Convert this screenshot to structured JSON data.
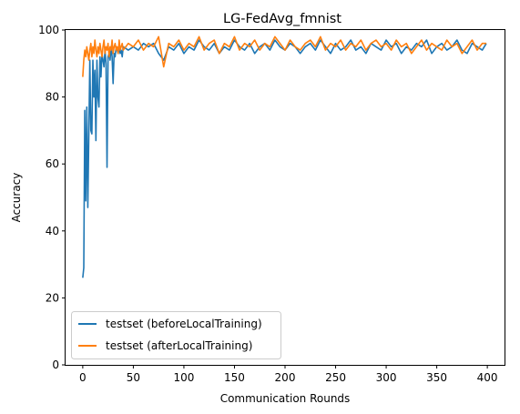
{
  "chart_data": {
    "type": "line",
    "title": "LG-FedAvg_fmnist",
    "xlabel": "Communication Rounds",
    "ylabel": "Accuracy",
    "xlim": [
      -17,
      417
    ],
    "ylim": [
      0,
      100
    ],
    "xticks": [
      0,
      50,
      100,
      150,
      200,
      250,
      300,
      350,
      400
    ],
    "yticks": [
      0,
      20,
      40,
      60,
      80,
      100
    ],
    "grid": false,
    "legend_position": "lower-left",
    "series": [
      {
        "name": "testset (beforeLocalTraining)",
        "color": "#1f77b4",
        "x": [
          0,
          1,
          2,
          3,
          4,
          5,
          6,
          7,
          8,
          9,
          10,
          11,
          12,
          13,
          14,
          15,
          16,
          17,
          18,
          19,
          20,
          21,
          22,
          23,
          24,
          25,
          26,
          27,
          28,
          29,
          30,
          31,
          32,
          33,
          34,
          35,
          36,
          37,
          38,
          39,
          40,
          45,
          50,
          55,
          60,
          65,
          70,
          75,
          80,
          85,
          90,
          95,
          100,
          105,
          110,
          115,
          120,
          125,
          130,
          135,
          140,
          145,
          150,
          155,
          160,
          165,
          170,
          175,
          180,
          185,
          190,
          195,
          200,
          205,
          210,
          215,
          220,
          225,
          230,
          235,
          240,
          245,
          250,
          255,
          260,
          265,
          270,
          275,
          280,
          285,
          290,
          295,
          300,
          305,
          310,
          315,
          320,
          325,
          330,
          335,
          340,
          345,
          350,
          355,
          360,
          365,
          370,
          375,
          380,
          385,
          390,
          395,
          399
        ],
        "y": [
          26,
          29,
          76,
          49,
          77,
          47,
          69,
          91,
          70,
          69,
          91,
          80,
          88,
          67,
          91,
          80,
          77,
          92,
          86,
          93,
          91,
          89,
          94,
          90,
          59,
          92,
          93,
          91,
          95,
          92,
          84,
          93,
          92,
          95,
          94,
          93,
          95,
          93,
          94,
          92,
          95,
          94,
          95,
          94,
          96,
          95,
          96,
          93,
          91,
          95,
          94,
          96,
          93,
          95,
          94,
          97,
          95,
          94,
          96,
          93,
          95,
          94,
          97,
          95,
          94,
          96,
          93,
          95,
          96,
          94,
          97,
          95,
          94,
          96,
          95,
          93,
          95,
          96,
          94,
          97,
          95,
          93,
          96,
          94,
          95,
          97,
          94,
          95,
          93,
          96,
          95,
          94,
          97,
          95,
          96,
          93,
          95,
          94,
          96,
          95,
          97,
          93,
          95,
          96,
          94,
          95,
          97,
          94,
          93,
          96,
          95,
          94,
          96
        ]
      },
      {
        "name": "testset (afterLocalTraining)",
        "color": "#ff7f0e",
        "x": [
          0,
          1,
          2,
          3,
          4,
          5,
          6,
          7,
          8,
          9,
          10,
          11,
          12,
          13,
          14,
          15,
          16,
          17,
          18,
          19,
          20,
          21,
          22,
          23,
          24,
          25,
          26,
          27,
          28,
          29,
          30,
          31,
          32,
          33,
          34,
          35,
          36,
          37,
          38,
          39,
          40,
          45,
          50,
          55,
          60,
          65,
          70,
          75,
          80,
          85,
          90,
          95,
          100,
          105,
          110,
          115,
          120,
          125,
          130,
          135,
          140,
          145,
          150,
          155,
          160,
          165,
          170,
          175,
          180,
          185,
          190,
          195,
          200,
          205,
          210,
          215,
          220,
          225,
          230,
          235,
          240,
          245,
          250,
          255,
          260,
          265,
          270,
          275,
          280,
          285,
          290,
          295,
          300,
          305,
          310,
          315,
          320,
          325,
          330,
          335,
          340,
          345,
          350,
          355,
          360,
          365,
          370,
          375,
          380,
          385,
          390,
          395,
          399
        ],
        "y": [
          86,
          91,
          94,
          92,
          95,
          93,
          91,
          94,
          96,
          92,
          95,
          93,
          97,
          94,
          92,
          95,
          93,
          96,
          94,
          92,
          95,
          97,
          93,
          95,
          94,
          96,
          92,
          95,
          94,
          97,
          93,
          95,
          96,
          94,
          95,
          93,
          97,
          94,
          95,
          96,
          94,
          96,
          95,
          97,
          94,
          96,
          95,
          98,
          89,
          96,
          95,
          97,
          94,
          96,
          95,
          98,
          94,
          96,
          97,
          93,
          96,
          95,
          98,
          94,
          96,
          95,
          97,
          94,
          96,
          95,
          98,
          96,
          94,
          97,
          95,
          94,
          96,
          97,
          95,
          98,
          94,
          96,
          95,
          97,
          94,
          96,
          95,
          97,
          94,
          96,
          97,
          95,
          96,
          94,
          97,
          95,
          96,
          93,
          95,
          97,
          94,
          96,
          95,
          94,
          97,
          95,
          96,
          93,
          95,
          97,
          94,
          96,
          96
        ]
      }
    ]
  }
}
